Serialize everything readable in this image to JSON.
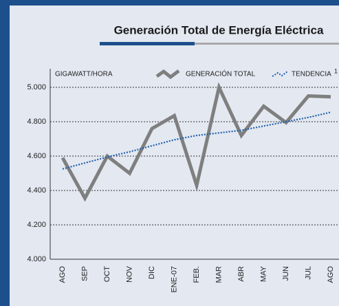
{
  "chart_data": {
    "type": "line",
    "title": "Generación Total de Energía Eléctrica",
    "y_label": "GIGAWATT/HORA",
    "footnote_marker": "1",
    "categories": [
      "AGO",
      "SEP",
      "OCT",
      "NOV",
      "DIC",
      "ENE-07",
      "FEB.",
      "MAR",
      "ABR",
      "MAY",
      "JUN",
      "JUL",
      "AGO"
    ],
    "series": [
      {
        "name": "GENERACIÓN TOTAL",
        "color": "#7f7f7f",
        "style": "solid",
        "values": [
          4590,
          4355,
          4600,
          4500,
          4760,
          4835,
          4430,
          5000,
          4720,
          4890,
          4795,
          4950,
          4945
        ]
      },
      {
        "name": "TENDENCIA",
        "color": "#1f5fa8",
        "style": "dotted",
        "values": [
          4525,
          4560,
          4595,
          4625,
          4660,
          4695,
          4720,
          4735,
          4750,
          4775,
          4800,
          4825,
          4855
        ]
      }
    ],
    "ylim": [
      4000,
      5000
    ],
    "yticks": [
      {
        "value": 4000,
        "label": "4.000"
      },
      {
        "value": 4200,
        "label": "4.200"
      },
      {
        "value": 4400,
        "label": "4.400"
      },
      {
        "value": 4600,
        "label": "4.600"
      },
      {
        "value": 4800,
        "label": "4.800"
      },
      {
        "value": 5000,
        "label": "5.000"
      }
    ],
    "grid": true
  }
}
